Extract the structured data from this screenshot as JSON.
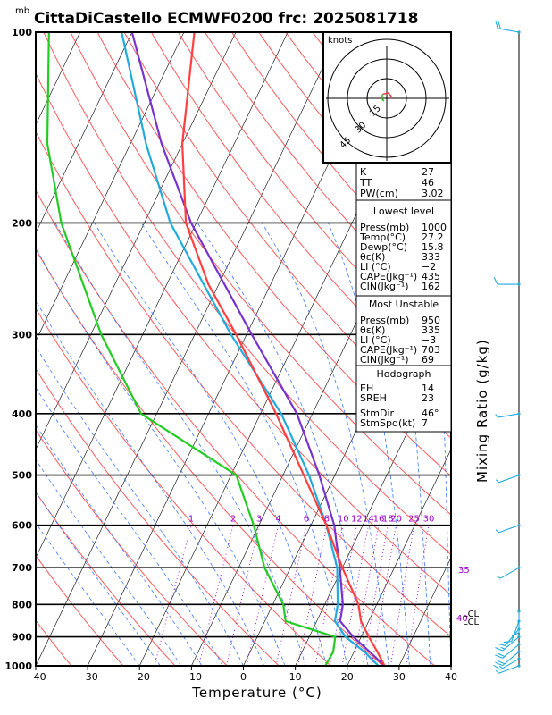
{
  "title": "CittaDiCastello ECMWF0200 frc: 2025081718",
  "colors": {
    "isotherm": "#000000",
    "dry_adiabat": "#ff4a4a",
    "moist_adiabat": "#3a78ff",
    "mixing_ratio": "#9a00c8",
    "temperature": "#ff4040",
    "dewpoint": "#22cc22",
    "parcel": "#7733cc",
    "wetbulb": "#22aadd",
    "wind": "#22aadd"
  },
  "chart_data": {
    "type": "skew-t log-p",
    "title": "CittaDiCastello ECMWF0200 frc: 2025081718",
    "xlabel": "Temperature (°C)",
    "ylabel": "Mixing Ratio (g/kg)",
    "pressure_unit_label": "mb",
    "x_ticks": [
      -40,
      -30,
      -20,
      -10,
      0,
      10,
      20,
      30,
      40
    ],
    "p_ticks": [
      100,
      200,
      300,
      400,
      500,
      600,
      700,
      800,
      900,
      1000
    ],
    "xlim": [
      -40,
      40
    ],
    "plim": [
      1000,
      100
    ],
    "mixing_ratio_labels": [
      "1",
      "2",
      "3",
      "4",
      "6",
      "8",
      "10",
      "12",
      "14",
      "16",
      "18",
      "20",
      "25",
      "30"
    ],
    "mixing_ratio_values": [
      1,
      2,
      3,
      4,
      6,
      8,
      10,
      12,
      14,
      16,
      18,
      20,
      25,
      30
    ],
    "side_labels": {
      "r35": "35",
      "r40": "40",
      "lcl": "LCL",
      "lcl2": "LCL"
    },
    "series": [
      {
        "name": "temperature",
        "points": [
          [
            1000,
            27.2
          ],
          [
            950,
            24.5
          ],
          [
            925,
            23
          ],
          [
            900,
            21.5
          ],
          [
            850,
            18.5
          ],
          [
            800,
            16.5
          ],
          [
            700,
            10
          ],
          [
            600,
            3
          ],
          [
            500,
            -6
          ],
          [
            400,
            -17
          ],
          [
            300,
            -32
          ],
          [
            250,
            -42
          ],
          [
            200,
            -52
          ],
          [
            150,
            -60
          ],
          [
            100,
            -68
          ]
        ]
      },
      {
        "name": "dewpoint",
        "points": [
          [
            1000,
            15.8
          ],
          [
            950,
            16
          ],
          [
            900,
            15
          ],
          [
            850,
            4
          ],
          [
            800,
            2
          ],
          [
            700,
            -5
          ],
          [
            600,
            -11
          ],
          [
            500,
            -19
          ],
          [
            400,
            -43
          ],
          [
            300,
            -58
          ],
          [
            200,
            -76
          ],
          [
            150,
            -86
          ],
          [
            100,
            -96
          ]
        ]
      },
      {
        "name": "parcel",
        "points": [
          [
            1000,
            27.2
          ],
          [
            950,
            23
          ],
          [
            900,
            18.5
          ],
          [
            850,
            14.5
          ],
          [
            800,
            13.5
          ],
          [
            700,
            9.5
          ],
          [
            600,
            4.5
          ],
          [
            500,
            -3
          ],
          [
            400,
            -13
          ],
          [
            300,
            -29
          ],
          [
            200,
            -51
          ],
          [
            150,
            -64
          ],
          [
            100,
            -80
          ]
        ]
      },
      {
        "name": "wetbulb",
        "points": [
          [
            1000,
            26
          ],
          [
            950,
            22
          ],
          [
            900,
            17
          ],
          [
            850,
            13.5
          ],
          [
            800,
            12.5
          ],
          [
            700,
            9
          ],
          [
            600,
            3
          ],
          [
            500,
            -5
          ],
          [
            400,
            -16
          ],
          [
            300,
            -33
          ],
          [
            200,
            -55
          ],
          [
            150,
            -67
          ],
          [
            100,
            -82
          ]
        ]
      }
    ],
    "winds": [
      {
        "p": 1000,
        "dir": 250,
        "spd": 5
      },
      {
        "p": 975,
        "dir": 240,
        "spd": 15
      },
      {
        "p": 950,
        "dir": 230,
        "spd": 20
      },
      {
        "p": 925,
        "dir": 230,
        "spd": 20
      },
      {
        "p": 900,
        "dir": 230,
        "spd": 15
      },
      {
        "p": 875,
        "dir": 220,
        "spd": 10
      },
      {
        "p": 850,
        "dir": 200,
        "spd": 10
      },
      {
        "p": 820,
        "dir": 180,
        "spd": 10
      },
      {
        "p": 700,
        "dir": 240,
        "spd": 5
      },
      {
        "p": 600,
        "dir": 250,
        "spd": 5
      },
      {
        "p": 500,
        "dir": 250,
        "spd": 5
      },
      {
        "p": 400,
        "dir": 260,
        "spd": 5
      },
      {
        "p": 250,
        "dir": 270,
        "spd": 10
      },
      {
        "p": 100,
        "dir": 280,
        "spd": 20
      }
    ]
  },
  "hodograph": {
    "label": "knots",
    "ring_labels": [
      "15",
      "30",
      "45"
    ],
    "points": [
      [
        -2,
        2
      ],
      [
        -4,
        0
      ],
      [
        -3,
        -3
      ],
      [
        1,
        -4
      ],
      [
        3,
        -2
      ],
      [
        4,
        0
      ]
    ]
  },
  "indices": {
    "k_label": "K",
    "k": "27",
    "tt_label": "TT",
    "tt": "46",
    "pw_label": "PW(cm)",
    "pw": "3.02"
  },
  "lowest_level": {
    "header": "Lowest level",
    "press_label": "Press(mb)",
    "press": "1000",
    "temp_label": "Temp(°C)",
    "temp": "27.2",
    "dewp_label": "Dewp(°C)",
    "dewp": "15.8",
    "thetae_label": "θε(K)",
    "thetae": "333",
    "li_label": "LI (°C)",
    "li": "−2",
    "cape_label": "CAPE(Jkg⁻¹)",
    "cape": "435",
    "cin_label": "CIN(Jkg⁻¹)",
    "cin": "162"
  },
  "most_unstable": {
    "header": "Most Unstable",
    "press_label": "Press(mb)",
    "press": "950",
    "thetae_label": "θε(K)",
    "thetae": "335",
    "li_label": "LI (°C)",
    "li": "−3",
    "cape_label": "CAPE(Jkg⁻¹)",
    "cape": "703",
    "cin_label": "CIN(Jkg⁻¹)",
    "cin": "69"
  },
  "hodograph_box": {
    "header": "Hodograph",
    "eh_label": "EH",
    "eh": "14",
    "sreh_label": "SREH",
    "sreh": "23",
    "stmdir_label": "StmDir",
    "stmdir": "46°",
    "stmspd_label": "StmSpd(kt)",
    "stmspd": "7"
  }
}
